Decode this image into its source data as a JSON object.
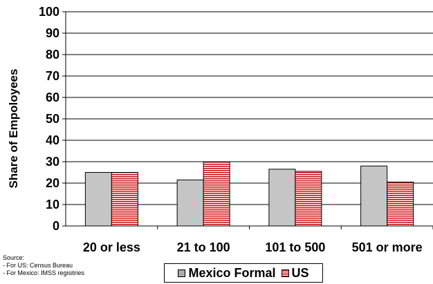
{
  "chart_data": {
    "type": "bar",
    "ylabel": "Share of Empoloyees",
    "ylim": [
      0,
      100
    ],
    "yticks": [
      "0",
      "10",
      "20",
      "30",
      "40",
      "50",
      "60",
      "70",
      "80",
      "90",
      "100"
    ],
    "categories": [
      "20 or less",
      "21 to 100",
      "101 to 500",
      "501 or more"
    ],
    "series": [
      {
        "name": "Mexico Formal",
        "values": [
          25,
          21.5,
          26.5,
          28
        ],
        "color": "#d9d9d9"
      },
      {
        "name": "US",
        "values": [
          25,
          30,
          25.5,
          20.5
        ],
        "color": "#cc0000"
      }
    ],
    "grid": true,
    "legend_position": "bottom"
  },
  "source": {
    "title": "Source:",
    "lines": [
      "- For US: Census Bureau",
      "- For Mexico: IMSS regisitries"
    ]
  }
}
